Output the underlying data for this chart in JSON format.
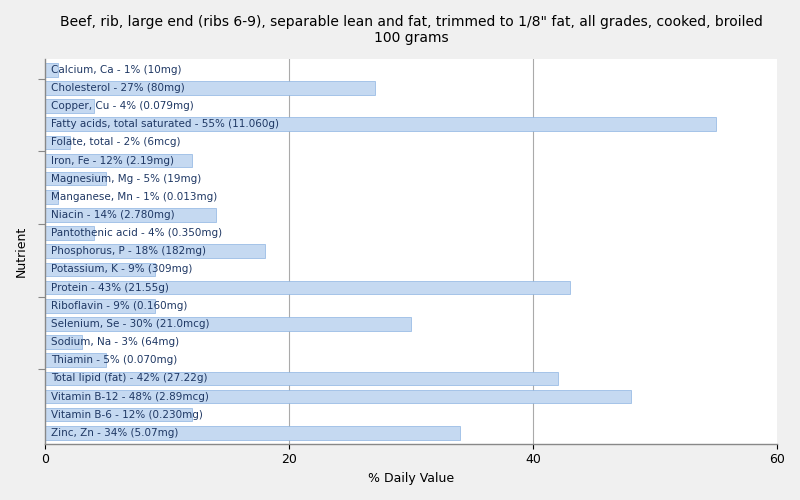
{
  "title": "Beef, rib, large end (ribs 6-9), separable lean and fat, trimmed to 1/8\" fat, all grades, cooked, broiled\n100 grams",
  "xlabel": "% Daily Value",
  "ylabel": "Nutrient",
  "xlim": [
    0,
    60
  ],
  "xticks": [
    0,
    20,
    40,
    60
  ],
  "background_color": "#f0f0f0",
  "plot_bg_color": "#ffffff",
  "bar_color": "#c5d9f1",
  "bar_edge_color": "#8db4e2",
  "nutrients": [
    {
      "label": "Calcium, Ca - 1% (10mg)",
      "value": 1
    },
    {
      "label": "Cholesterol - 27% (80mg)",
      "value": 27
    },
    {
      "label": "Copper, Cu - 4% (0.079mg)",
      "value": 4
    },
    {
      "label": "Fatty acids, total saturated - 55% (11.060g)",
      "value": 55
    },
    {
      "label": "Folate, total - 2% (6mcg)",
      "value": 2
    },
    {
      "label": "Iron, Fe - 12% (2.19mg)",
      "value": 12
    },
    {
      "label": "Magnesium, Mg - 5% (19mg)",
      "value": 5
    },
    {
      "label": "Manganese, Mn - 1% (0.013mg)",
      "value": 1
    },
    {
      "label": "Niacin - 14% (2.780mg)",
      "value": 14
    },
    {
      "label": "Pantothenic acid - 4% (0.350mg)",
      "value": 4
    },
    {
      "label": "Phosphorus, P - 18% (182mg)",
      "value": 18
    },
    {
      "label": "Potassium, K - 9% (309mg)",
      "value": 9
    },
    {
      "label": "Protein - 43% (21.55g)",
      "value": 43
    },
    {
      "label": "Riboflavin - 9% (0.160mg)",
      "value": 9
    },
    {
      "label": "Selenium, Se - 30% (21.0mcg)",
      "value": 30
    },
    {
      "label": "Sodium, Na - 3% (64mg)",
      "value": 3
    },
    {
      "label": "Thiamin - 5% (0.070mg)",
      "value": 5
    },
    {
      "label": "Total lipid (fat) - 42% (27.22g)",
      "value": 42
    },
    {
      "label": "Vitamin B-12 - 48% (2.89mcg)",
      "value": 48
    },
    {
      "label": "Vitamin B-6 - 12% (0.230mg)",
      "value": 12
    },
    {
      "label": "Zinc, Zn - 34% (5.07mg)",
      "value": 34
    }
  ],
  "title_fontsize": 10,
  "label_fontsize": 7.5,
  "axis_fontsize": 9,
  "bar_height": 0.75,
  "vline_color": "#aaaaaa",
  "spine_color": "#888888"
}
